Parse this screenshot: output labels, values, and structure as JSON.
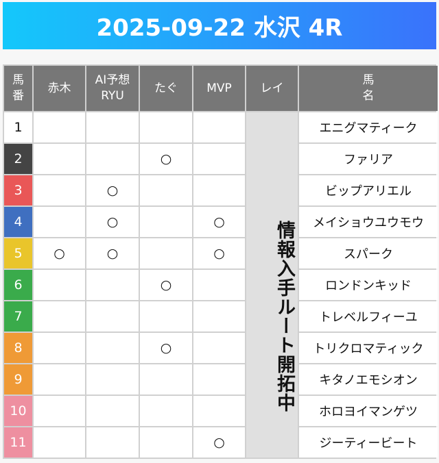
{
  "title": "2025-09-22 水沢 4R",
  "headers": [
    "馬\n番",
    "赤木",
    "AI予想\nRYU",
    "たぐ",
    "MVP",
    "レイ",
    "馬\n名"
  ],
  "rei_text": "情報入手ルート開拓中",
  "mark": "○",
  "rows": [
    {
      "num": "1",
      "bg": "#ffffff",
      "fg": "#111111",
      "name": "エニグマティーク",
      "marks": [
        0,
        0,
        0,
        0
      ]
    },
    {
      "num": "2",
      "bg": "#444444",
      "fg": "#ffffff",
      "name": "ファリア",
      "marks": [
        0,
        0,
        1,
        0
      ]
    },
    {
      "num": "3",
      "bg": "#e95757",
      "fg": "#ffffff",
      "name": "ビップアリエル",
      "marks": [
        0,
        1,
        0,
        0
      ]
    },
    {
      "num": "4",
      "bg": "#3f6fc0",
      "fg": "#ffffff",
      "name": "メイショウユウモウ",
      "marks": [
        0,
        1,
        0,
        1
      ]
    },
    {
      "num": "5",
      "bg": "#e9c52b",
      "fg": "#ffffff",
      "name": "スパーク",
      "marks": [
        1,
        1,
        0,
        1
      ]
    },
    {
      "num": "6",
      "bg": "#3aab4b",
      "fg": "#ffffff",
      "name": "ロンドンキッド",
      "marks": [
        0,
        0,
        1,
        0
      ]
    },
    {
      "num": "7",
      "bg": "#3aab4b",
      "fg": "#ffffff",
      "name": "トレベルフィーユ",
      "marks": [
        0,
        0,
        0,
        0
      ]
    },
    {
      "num": "8",
      "bg": "#ef9a36",
      "fg": "#ffffff",
      "name": "トリクロマティック",
      "marks": [
        0,
        0,
        1,
        0
      ]
    },
    {
      "num": "9",
      "bg": "#ef9a36",
      "fg": "#ffffff",
      "name": "キタノエモシオン",
      "marks": [
        0,
        0,
        0,
        0
      ]
    },
    {
      "num": "10",
      "bg": "#ee8fa0",
      "fg": "#ffffff",
      "name": "ホロヨイマンゲツ",
      "marks": [
        0,
        0,
        0,
        0
      ]
    },
    {
      "num": "11",
      "bg": "#ee8fa0",
      "fg": "#ffffff",
      "name": "ジーティービート",
      "marks": [
        0,
        0,
        0,
        1
      ]
    }
  ]
}
